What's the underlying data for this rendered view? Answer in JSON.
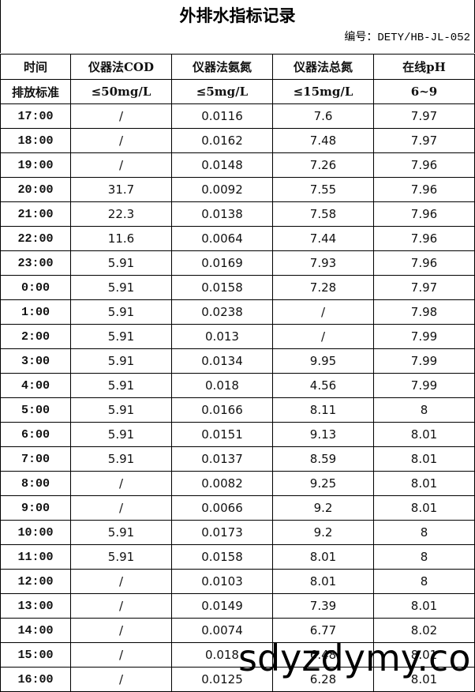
{
  "title": "外排水指标记录",
  "doc_number": "编号：DETY/HB-JL-052",
  "table": {
    "header": [
      "时间",
      "仪器法COD",
      "仪器法氨氮",
      "仪器法总氮",
      "在线pH"
    ],
    "standard": [
      "排放标准",
      "≤50mg/L",
      "≤5mg/L",
      "≤15mg/L",
      "6~9"
    ],
    "rows": [
      [
        "17:00",
        "/",
        "0.0116",
        "7.6",
        "7.97"
      ],
      [
        "18:00",
        "/",
        "0.0162",
        "7.48",
        "7.97"
      ],
      [
        "19:00",
        "/",
        "0.0148",
        "7.26",
        "7.96"
      ],
      [
        "20:00",
        "31.7",
        "0.0092",
        "7.55",
        "7.96"
      ],
      [
        "21:00",
        "22.3",
        "0.0138",
        "7.58",
        "7.96"
      ],
      [
        "22:00",
        "11.6",
        "0.0064",
        "7.44",
        "7.96"
      ],
      [
        "23:00",
        "5.91",
        "0.0169",
        "7.93",
        "7.96"
      ],
      [
        "0:00",
        "5.91",
        "0.0158",
        "7.28",
        "7.97"
      ],
      [
        "1:00",
        "5.91",
        "0.0238",
        "/",
        "7.98"
      ],
      [
        "2:00",
        "5.91",
        "0.013",
        "/",
        "7.99"
      ],
      [
        "3:00",
        "5.91",
        "0.0134",
        "9.95",
        "7.99"
      ],
      [
        "4:00",
        "5.91",
        "0.018",
        "4.56",
        "7.99"
      ],
      [
        "5:00",
        "5.91",
        "0.0166",
        "8.11",
        "8"
      ],
      [
        "6:00",
        "5.91",
        "0.0151",
        "9.13",
        "8.01"
      ],
      [
        "7:00",
        "5.91",
        "0.0137",
        "8.59",
        "8.01"
      ],
      [
        "8:00",
        "/",
        "0.0082",
        "9.25",
        "8.01"
      ],
      [
        "9:00",
        "/",
        "0.0066",
        "9.2",
        "8.01"
      ],
      [
        "10:00",
        "5.91",
        "0.0173",
        "9.2",
        "8"
      ],
      [
        "11:00",
        "5.91",
        "0.0158",
        "8.01",
        "8"
      ],
      [
        "12:00",
        "/",
        "0.0103",
        "8.01",
        "8"
      ],
      [
        "13:00",
        "/",
        "0.0149",
        "7.39",
        "8.01"
      ],
      [
        "14:00",
        "/",
        "0.0074",
        "6.77",
        "8.02"
      ],
      [
        "15:00",
        "/",
        "0.018",
        "6.48",
        "8.01"
      ],
      [
        "16:00",
        "/",
        "0.0125",
        "6.28",
        "8.01"
      ]
    ]
  },
  "watermark": "sdyzdymy.co"
}
